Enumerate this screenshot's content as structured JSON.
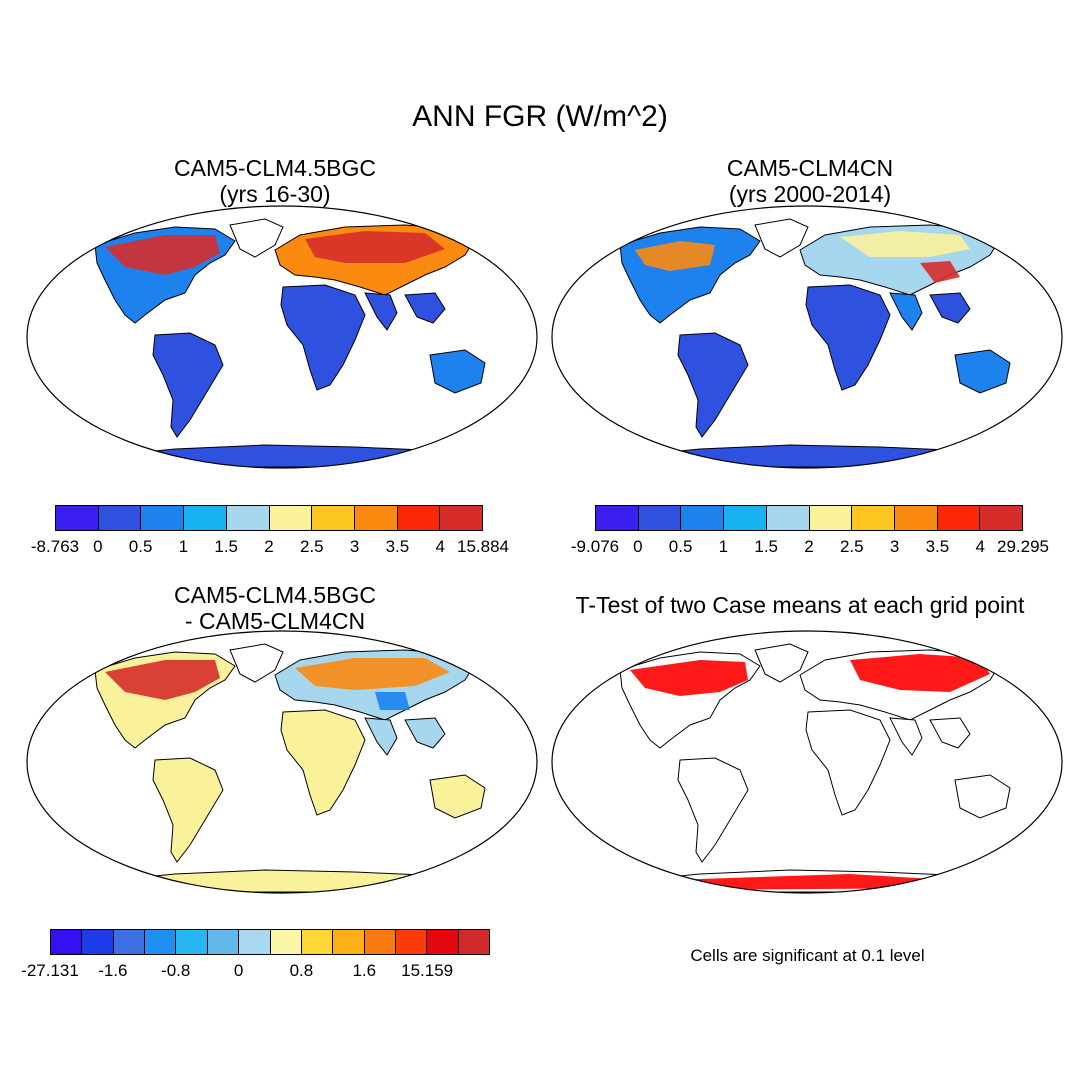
{
  "title": "ANN FGR (W/m^2)",
  "panels": {
    "p1": {
      "title_line1": "CAM5-CLM4.5BGC",
      "title_line2": "(yrs 16-30)"
    },
    "p2": {
      "title_line1": "CAM5-CLM4CN",
      "title_line2": "(yrs 2000-2014)"
    },
    "p3": {
      "title_line1": "CAM5-CLM4.5BGC",
      "title_line2": "- CAM5-CLM4CN"
    },
    "p4": {
      "title_line1": "T-Test of two Case means at each grid point",
      "note": "Cells are significant at 0.1 level"
    }
  },
  "colorbars": {
    "cb1": {
      "colors": [
        "#3a1ff0",
        "#2f51e0",
        "#1e82ee",
        "#19b2f0",
        "#a6d7ee",
        "#f9f29a",
        "#fcc51f",
        "#fb8a11",
        "#fb2808",
        "#d62d2b"
      ],
      "labels": [
        "-8.763",
        "0",
        "0.5",
        "1",
        "1.5",
        "2",
        "2.5",
        "3",
        "3.5",
        "4",
        "15.884"
      ]
    },
    "cb2": {
      "colors": [
        "#3a1ff0",
        "#2f51e0",
        "#1e82ee",
        "#19b2f0",
        "#a6d7ee",
        "#f9f29a",
        "#fcc51f",
        "#fb8a11",
        "#fb2808",
        "#d62d2b"
      ],
      "labels": [
        "-9.076",
        "0",
        "0.5",
        "1",
        "1.5",
        "2",
        "2.5",
        "3",
        "3.5",
        "4",
        "29.295"
      ]
    },
    "cb3": {
      "colors": [
        "#3510f3",
        "#1d3be9",
        "#3c6fe0",
        "#1f8ff1",
        "#26b6f1",
        "#63b7ea",
        "#a6d9ef",
        "#fbf7a6",
        "#fdd735",
        "#fcb016",
        "#fb7a0f",
        "#fb3b09",
        "#e2080d",
        "#d02a2a"
      ],
      "labels": [
        "-27.131",
        "-1.6",
        "-0.8",
        "0",
        "0.8",
        "1.6",
        "15.159"
      ]
    }
  },
  "map_colors": {
    "low": "#2f51e0",
    "mid_blue": "#1e82ee",
    "light_blue": "#a6d7ee",
    "yellow": "#f9f29a",
    "orange": "#fb8a11",
    "red": "#d62d2b",
    "ttest_red": "#ff0000"
  }
}
